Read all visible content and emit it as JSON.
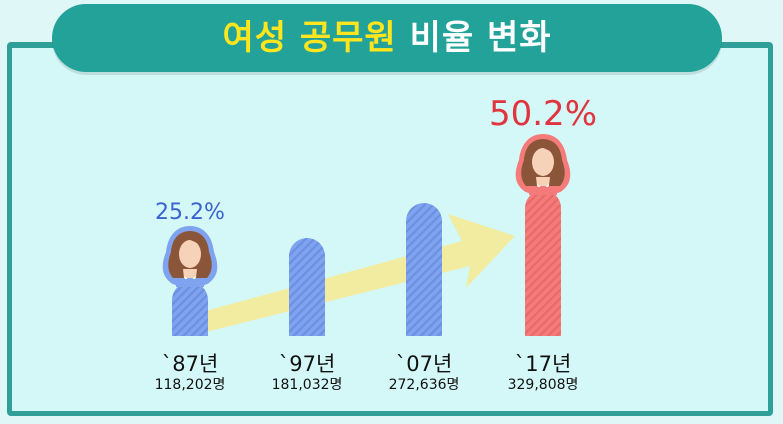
{
  "title": {
    "highlight": "여성 공무원",
    "rest": "비율 변화"
  },
  "colors": {
    "title_bg": "#23a29a",
    "panel_border": "#2f9f97",
    "panel_bg": "#d4f8f7",
    "highlight": "#ffe51d",
    "bar_blue": "#7fa3ee",
    "bar_red": "#f57b7b",
    "pct_blue": "#3a62d0",
    "pct_red": "#e0343f",
    "arrow": "#f1ec9f"
  },
  "chart_data": {
    "type": "bar",
    "categories": [
      "`87년",
      "`97년",
      "`07년",
      "`17년"
    ],
    "series": [
      {
        "values": [
          118202,
          181032,
          272636,
          329808
        ],
        "labels": [
          "118,202명",
          "181,032명",
          "272,636명",
          "329,808명"
        ]
      }
    ],
    "percent_labels": {
      "`87년": "25.2%",
      "`17년": "50.2%"
    },
    "highlight_category": "`17년",
    "icons": [
      "woman-avatar-icon",
      "woman-avatar-icon"
    ],
    "decorations": [
      "trend-arrow"
    ]
  }
}
